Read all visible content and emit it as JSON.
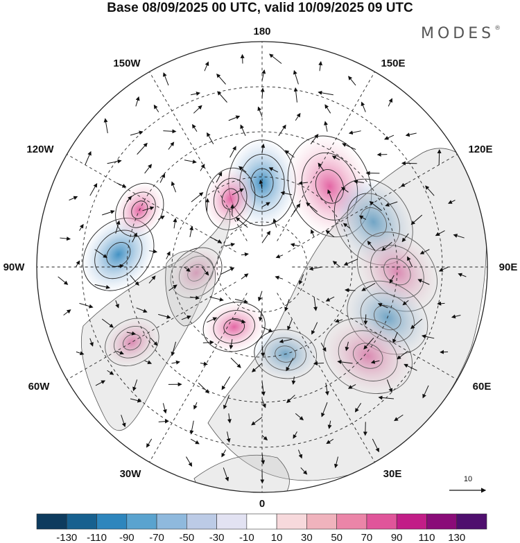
{
  "title": "Base 08/09/2025 00 UTC, valid 10/09/2025 09 UTC",
  "logo": "MODES",
  "logo_mark": "®",
  "longitude_labels": {
    "top": "180",
    "bottom": "0",
    "left": "90W",
    "right": "90E",
    "upper_left_1": "150W",
    "upper_left_2": "120W",
    "upper_right_1": "150E",
    "upper_right_2": "120E",
    "lower_left_1": "60W",
    "lower_left_2": "30W",
    "lower_right_1": "60E",
    "lower_right_2": "30E"
  },
  "reference_vector": {
    "label": "10"
  },
  "colorbar": {
    "labels": [
      "-130",
      "-110",
      "-90",
      "-70",
      "-50",
      "-30",
      "-10",
      "10",
      "30",
      "50",
      "70",
      "90",
      "110",
      "130"
    ],
    "colors": [
      "#0d3b5e",
      "#17608f",
      "#2e86bd",
      "#5aa3cf",
      "#8fb9dd",
      "#bccbe6",
      "#e2e2f2",
      "#ffffff",
      "#f7d9dc",
      "#f0b3bd",
      "#eb85a8",
      "#e0559a",
      "#c21d87",
      "#8a0c78",
      "#4f0f6e"
    ]
  },
  "anomaly_centers": [
    {
      "lon": 180,
      "lat": 62,
      "value": -80
    },
    {
      "lon": 140,
      "lat": 55,
      "value": 110
    },
    {
      "lon": 112,
      "lat": 50,
      "value": -90
    },
    {
      "lon": 88,
      "lat": 45,
      "value": 85
    },
    {
      "lon": 68,
      "lat": 45,
      "value": -80
    },
    {
      "lon": 50,
      "lat": 44,
      "value": 90
    },
    {
      "lon": -155,
      "lat": 65,
      "value": 40
    },
    {
      "lon": -95,
      "lat": 42,
      "value": -70
    },
    {
      "lon": -60,
      "lat": 40,
      "value": 30
    },
    {
      "lon": -85,
      "lat": 68,
      "value": 30
    },
    {
      "lon": -25,
      "lat": 68,
      "value": 40
    },
    {
      "lon": 15,
      "lat": 60,
      "value": -40
    },
    {
      "lon": -115,
      "lat": 45,
      "value": 30
    }
  ]
}
